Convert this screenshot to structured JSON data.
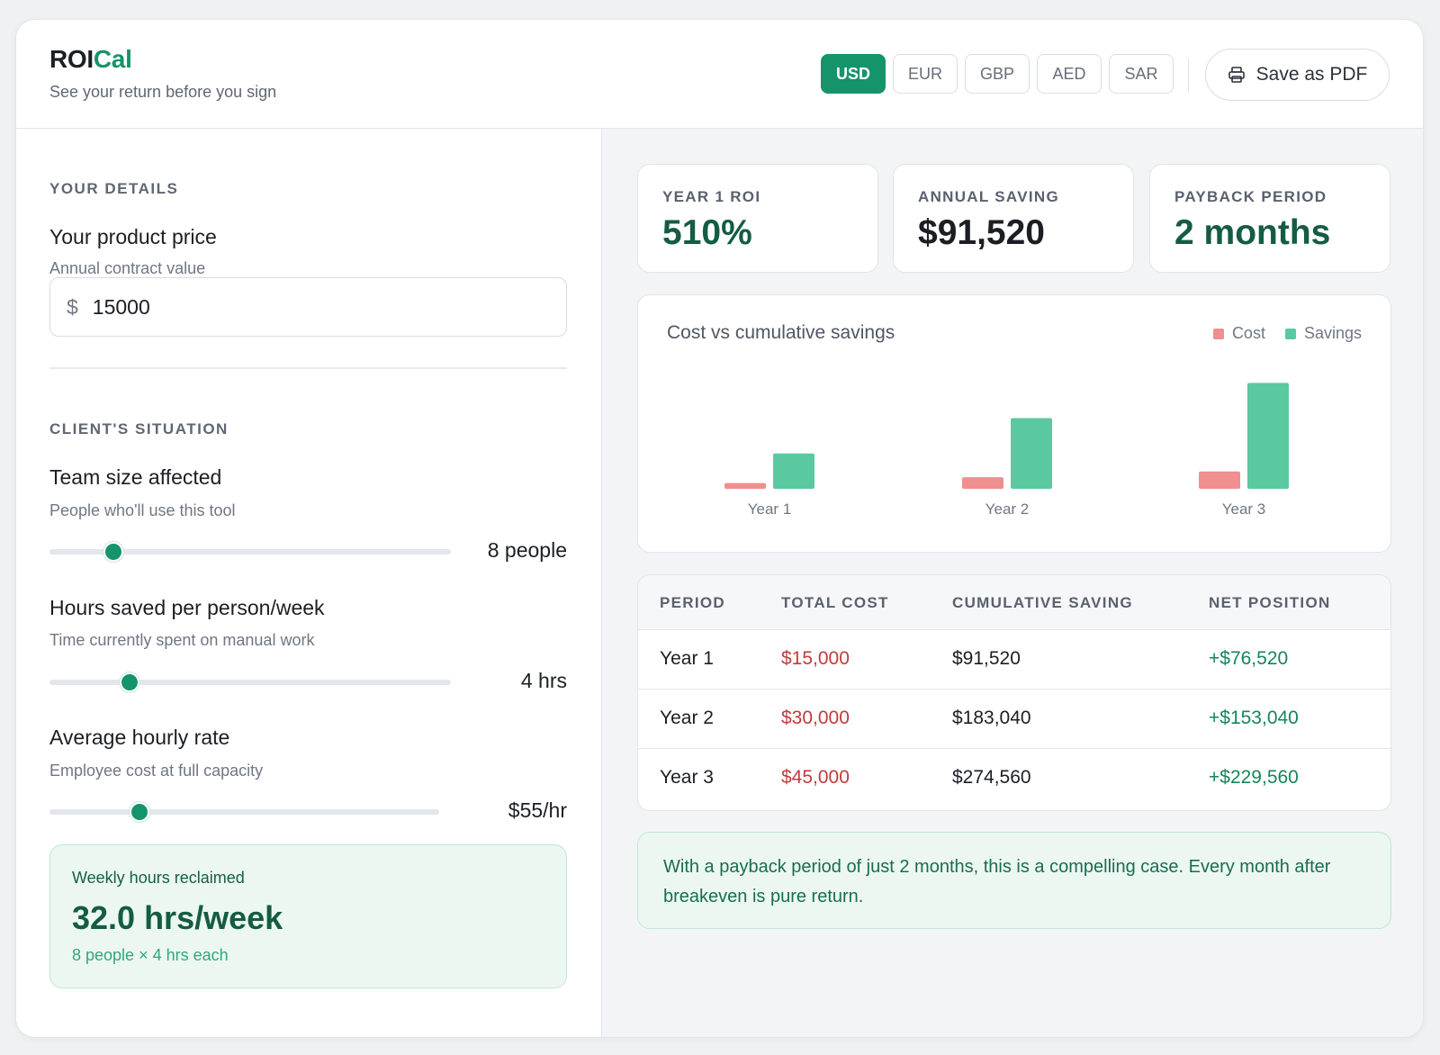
{
  "header": {
    "brand_prefix": "ROI",
    "brand_suffix": "Cal",
    "tagline": "See your return before you sign",
    "currencies": [
      "USD",
      "EUR",
      "GBP",
      "AED",
      "SAR"
    ],
    "active_currency": "USD",
    "pdf_label": "Save as PDF"
  },
  "details": {
    "section_label": "YOUR DETAILS",
    "price_title": "Your product price",
    "price_sub": "Annual contract value",
    "currency_symbol": "$",
    "price_value": "15000"
  },
  "situation": {
    "section_label": "CLIENT'S SITUATION",
    "team": {
      "title": "Team size affected",
      "sub": "People who'll use this tool",
      "value_label": "8 people",
      "fraction": 0.16
    },
    "hours": {
      "title": "Hours saved per person/week",
      "sub": "Time currently spent on manual work",
      "value_label": "4 hrs",
      "fraction": 0.2
    },
    "rate": {
      "title": "Average hourly rate",
      "sub": "Employee cost at full capacity",
      "value_label": "$55/hr",
      "fraction": 0.23
    }
  },
  "weekly": {
    "label": "Weekly hours reclaimed",
    "value": "32.0 hrs/week",
    "sub": "8 people × 4 hrs each"
  },
  "kpis": [
    {
      "label": "YEAR 1 ROI",
      "value": "510%",
      "color": "#145c43"
    },
    {
      "label": "ANNUAL SAVING",
      "value": "$91,520",
      "color": "#1b1f24"
    },
    {
      "label": "PAYBACK PERIOD",
      "value": "2 months",
      "color": "#145c43"
    }
  ],
  "chart_data": {
    "type": "bar",
    "title": "Cost vs cumulative savings",
    "categories": [
      "Year 1",
      "Year 2",
      "Year 3"
    ],
    "series": [
      {
        "name": "Cost",
        "values": [
          15000,
          30000,
          45000
        ],
        "color": "#ef8f8f"
      },
      {
        "name": "Savings",
        "values": [
          91520,
          183040,
          274560
        ],
        "color": "#5ac99f"
      }
    ],
    "ylim": [
      0,
      280000
    ],
    "legend": "top-right",
    "grid": false
  },
  "table": {
    "headers": [
      "PERIOD",
      "TOTAL COST",
      "CUMULATIVE SAVING",
      "NET POSITION"
    ],
    "rows": [
      [
        "Year 1",
        "$15,000",
        "$91,520",
        "+$76,520"
      ],
      [
        "Year 2",
        "$30,000",
        "$183,040",
        "+$153,040"
      ],
      [
        "Year 3",
        "$45,000",
        "$274,560",
        "+$229,560"
      ]
    ],
    "cost_color": "#c23b3b",
    "net_color": "#178557"
  },
  "note": "With a payback period of just 2 months, this is a compelling case. Every month after breakeven is pure return."
}
